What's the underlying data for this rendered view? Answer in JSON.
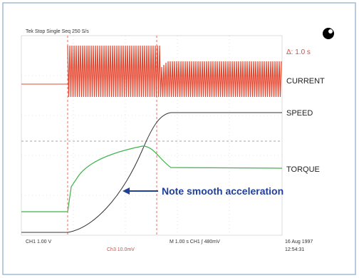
{
  "header": {
    "status": "Tek Stop Single Seq 250 S/s",
    "delta": "Δ: 1.0 s"
  },
  "traces": [
    {
      "label": "CURRENT"
    },
    {
      "label": "SPEED"
    },
    {
      "label": "TORQUE"
    }
  ],
  "annotation": "Note smooth acceleration",
  "footer": {
    "ch1": "CH1 1.00 V",
    "ch3": "Ch3 10.0mV",
    "timebase": "M 1.00 s CH1 ∫ 480mV",
    "date": "16 Aug 1997",
    "time": "12:54:31"
  }
}
